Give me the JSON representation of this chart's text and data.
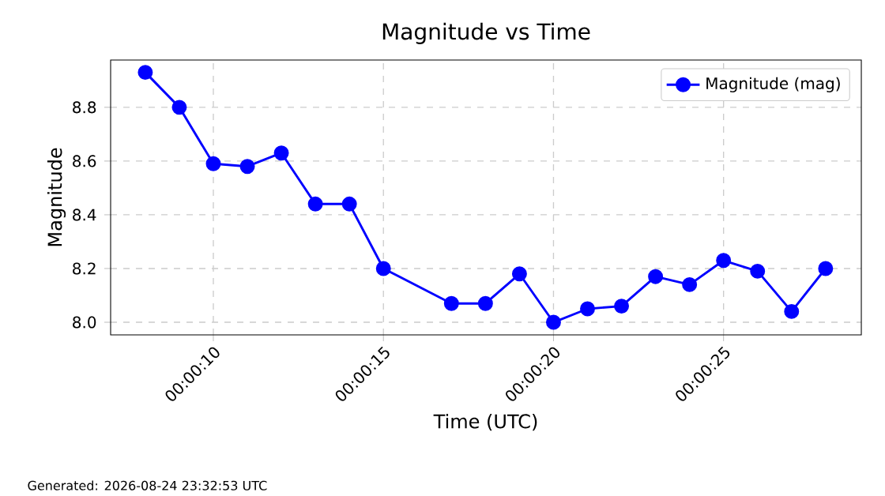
{
  "chart_data": {
    "type": "line",
    "title": "Magnitude vs Time",
    "xlabel": "Time (UTC)",
    "ylabel": "Magnitude",
    "x": [
      0.0022222,
      0.0025,
      0.0027778,
      0.0030556,
      0.0033333,
      0.0036111,
      0.0038889,
      0.0041667,
      0.0047222,
      0.005,
      0.0052778,
      0.0055556,
      0.0058333,
      0.0061111,
      0.0063889,
      0.0066667,
      0.0069444,
      0.0072222,
      0.0075,
      0.0077778
    ],
    "series": [
      {
        "name": "Magnitude (mag)",
        "color": "#0000ff",
        "values": [
          8.93,
          8.8,
          8.59,
          8.58,
          8.63,
          8.44,
          8.44,
          8.2,
          8.07,
          8.07,
          8.18,
          8.0,
          8.05,
          8.06,
          8.17,
          8.14,
          8.23,
          8.19,
          8.04,
          8.2
        ]
      }
    ],
    "xlim": [
      0.0019389,
      0.0080694
    ],
    "xticks": [
      {
        "value": 0.0027778,
        "label": "00:00:10"
      },
      {
        "value": 0.0041667,
        "label": "00:00:15"
      },
      {
        "value": 0.0055556,
        "label": "00:00:20"
      },
      {
        "value": 0.0069444,
        "label": "00:00:25"
      }
    ],
    "ylim": [
      7.953,
      8.976
    ],
    "yticks": [
      {
        "value": 8,
        "label": "8.0"
      },
      8.2,
      8.4,
      8.6,
      8.8
    ],
    "grid": true,
    "legend": "top right",
    "marker": "circle",
    "line_style": "solid",
    "annotations": [
      "Generated: 2026-08-24 23:32:53 UTC"
    ]
  }
}
